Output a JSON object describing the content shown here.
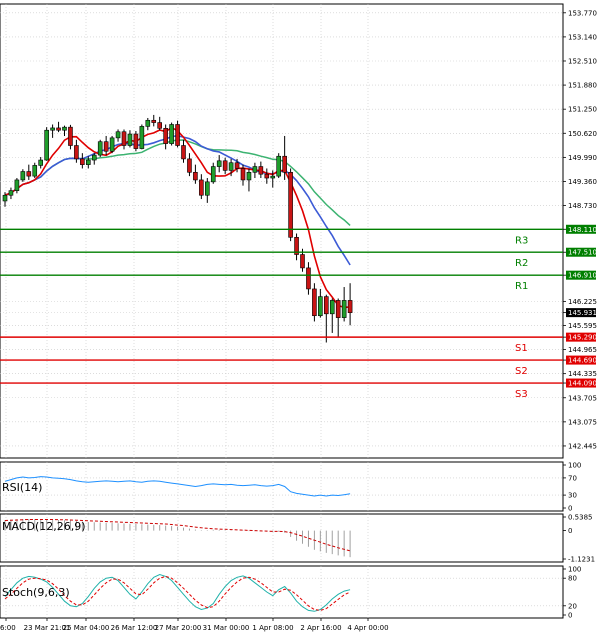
{
  "chart_data": {
    "type": "candlestick",
    "symbol_timeframe": "USDJPY H4",
    "price_axis": {
      "range": [
        142.13,
        154.0
      ],
      "ticks": [
        "153.770",
        "153.140",
        "152.510",
        "151.880",
        "151.250",
        "150.620",
        "149.990",
        "149.360",
        "148.730",
        "148.110",
        "147.510",
        "146.910",
        "146.225",
        "145.931",
        "145.595",
        "145.290",
        "144.965",
        "144.690",
        "144.335",
        "144.090",
        "143.705",
        "143.075",
        "142.445"
      ]
    },
    "time_axis": {
      "labels": [
        "6:00",
        "23 Mar 21:01",
        "25 Mar 04:00",
        "26 Mar 12:00",
        "27 Mar 20:00",
        "31 Mar 00:00",
        "1 Apr 08:00",
        "2 Apr 16:00",
        "4 Apr 00:00"
      ]
    },
    "current_price": "145.931",
    "levels": [
      {
        "name": "R3",
        "value": 148.11,
        "label": "148.110",
        "color": "#007f00"
      },
      {
        "name": "R2",
        "value": 147.51,
        "label": "147.510",
        "color": "#007f00"
      },
      {
        "name": "R1",
        "value": 146.91,
        "label": "146.910",
        "color": "#007f00"
      },
      {
        "name": "S1",
        "value": 145.29,
        "label": "145.290",
        "color": "#e00000"
      },
      {
        "name": "S2",
        "value": 144.69,
        "label": "144.690",
        "color": "#e00000"
      },
      {
        "name": "S3",
        "value": 144.09,
        "label": "144.090",
        "color": "#e00000"
      }
    ],
    "candles": [
      [
        148.85,
        149.08,
        148.7,
        149.0
      ],
      [
        149.0,
        149.2,
        148.9,
        149.12
      ],
      [
        149.12,
        149.45,
        149.05,
        149.4
      ],
      [
        149.4,
        149.68,
        149.35,
        149.62
      ],
      [
        149.62,
        149.8,
        149.4,
        149.5
      ],
      [
        149.5,
        149.85,
        149.45,
        149.78
      ],
      [
        149.78,
        150.0,
        149.7,
        149.92
      ],
      [
        149.92,
        150.78,
        149.9,
        150.7
      ],
      [
        150.7,
        150.85,
        150.5,
        150.76
      ],
      [
        150.76,
        150.92,
        150.65,
        150.7
      ],
      [
        150.7,
        150.82,
        150.55,
        150.78
      ],
      [
        150.78,
        150.84,
        150.2,
        150.3
      ],
      [
        150.3,
        150.45,
        149.85,
        149.95
      ],
      [
        149.95,
        150.1,
        149.7,
        149.8
      ],
      [
        149.8,
        150.02,
        149.7,
        149.92
      ],
      [
        149.92,
        150.1,
        149.8,
        150.05
      ],
      [
        150.05,
        150.45,
        150.0,
        150.4
      ],
      [
        150.4,
        150.55,
        150.05,
        150.15
      ],
      [
        150.15,
        150.55,
        150.1,
        150.5
      ],
      [
        150.5,
        150.72,
        150.4,
        150.66
      ],
      [
        150.66,
        150.72,
        150.2,
        150.3
      ],
      [
        150.3,
        150.7,
        150.25,
        150.6
      ],
      [
        150.6,
        150.68,
        150.15,
        150.22
      ],
      [
        150.22,
        150.85,
        150.2,
        150.8
      ],
      [
        150.8,
        151.02,
        150.7,
        150.96
      ],
      [
        150.96,
        151.1,
        150.8,
        150.9
      ],
      [
        150.9,
        151.05,
        150.7,
        150.75
      ],
      [
        150.75,
        150.85,
        150.2,
        150.35
      ],
      [
        150.35,
        150.9,
        150.3,
        150.85
      ],
      [
        150.85,
        150.95,
        150.25,
        150.3
      ],
      [
        150.3,
        150.45,
        149.85,
        149.95
      ],
      [
        149.95,
        150.1,
        149.5,
        149.6
      ],
      [
        149.6,
        149.8,
        149.3,
        149.4
      ],
      [
        149.4,
        149.55,
        148.9,
        149.0
      ],
      [
        149.0,
        149.45,
        148.8,
        149.35
      ],
      [
        149.35,
        149.85,
        149.3,
        149.75
      ],
      [
        149.75,
        150.05,
        149.6,
        149.9
      ],
      [
        149.9,
        149.98,
        149.55,
        149.65
      ],
      [
        149.65,
        149.95,
        149.5,
        149.85
      ],
      [
        149.85,
        149.95,
        149.6,
        149.7
      ],
      [
        149.7,
        149.8,
        149.25,
        149.4
      ],
      [
        149.4,
        149.7,
        149.1,
        149.6
      ],
      [
        149.6,
        149.85,
        149.45,
        149.75
      ],
      [
        149.75,
        149.88,
        149.45,
        149.55
      ],
      [
        149.55,
        149.7,
        149.3,
        149.45
      ],
      [
        149.45,
        149.65,
        149.2,
        149.5
      ],
      [
        149.5,
        150.1,
        149.45,
        150.02
      ],
      [
        150.02,
        150.55,
        149.4,
        149.6
      ],
      [
        149.6,
        149.7,
        147.8,
        147.9
      ],
      [
        147.9,
        148.0,
        147.3,
        147.45
      ],
      [
        147.45,
        147.6,
        147.0,
        147.1
      ],
      [
        147.1,
        147.25,
        146.4,
        146.55
      ],
      [
        146.55,
        146.7,
        145.7,
        145.85
      ],
      [
        145.85,
        146.55,
        145.8,
        146.35
      ],
      [
        146.35,
        146.4,
        145.15,
        145.9
      ],
      [
        145.9,
        146.3,
        145.4,
        146.25
      ],
      [
        146.25,
        146.3,
        145.3,
        145.8
      ],
      [
        145.8,
        146.6,
        145.7,
        146.25
      ],
      [
        146.25,
        146.7,
        145.6,
        145.93
      ]
    ],
    "indicators": [
      {
        "name": "RSI(14)",
        "ticks": [
          "100",
          "70",
          "30",
          "0"
        ],
        "range": [
          0,
          100
        ],
        "color": "#1e90ff",
        "values": [
          62,
          66,
          70,
          72,
          70,
          71,
          73,
          72,
          70,
          69,
          68,
          66,
          63,
          61,
          60,
          61,
          62,
          63,
          62,
          61,
          62,
          63,
          61,
          60,
          62,
          63,
          62,
          60,
          58,
          56,
          54,
          52,
          50,
          52,
          55,
          56,
          55,
          54,
          55,
          53,
          52,
          53,
          54,
          52,
          51,
          52,
          55,
          50,
          38,
          34,
          32,
          30,
          28,
          30,
          28,
          30,
          29,
          31,
          33
        ]
      },
      {
        "name": "MACD(12,26,9)",
        "ticks": [
          "0.5385",
          "0",
          "-1.1231"
        ],
        "range": [
          -1.1231,
          0.5385
        ],
        "color": "#cc0000",
        "hist": [
          0.42,
          0.44,
          0.45,
          0.46,
          0.46,
          0.45,
          0.44,
          0.44,
          0.43,
          0.42,
          0.41,
          0.4,
          0.38,
          0.36,
          0.34,
          0.33,
          0.32,
          0.31,
          0.3,
          0.29,
          0.28,
          0.27,
          0.26,
          0.25,
          0.24,
          0.23,
          0.22,
          0.2,
          0.18,
          0.15,
          0.12,
          0.08,
          0.04,
          0.02,
          0.02,
          0.03,
          0.03,
          0.02,
          0.01,
          0.0,
          -0.01,
          -0.02,
          -0.02,
          -0.03,
          -0.04,
          -0.05,
          -0.04,
          -0.08,
          -0.25,
          -0.4,
          -0.52,
          -0.64,
          -0.76,
          -0.82,
          -0.88,
          -0.93,
          -0.98,
          -1.02,
          -1.05
        ],
        "signal": [
          0.4,
          0.41,
          0.42,
          0.43,
          0.44,
          0.44,
          0.44,
          0.44,
          0.44,
          0.43,
          0.43,
          0.42,
          0.41,
          0.4,
          0.39,
          0.38,
          0.37,
          0.36,
          0.35,
          0.34,
          0.33,
          0.32,
          0.31,
          0.3,
          0.29,
          0.28,
          0.27,
          0.26,
          0.24,
          0.22,
          0.2,
          0.17,
          0.14,
          0.11,
          0.09,
          0.07,
          0.06,
          0.05,
          0.04,
          0.03,
          0.02,
          0.01,
          0.0,
          -0.01,
          -0.02,
          -0.03,
          -0.03,
          -0.04,
          -0.08,
          -0.15,
          -0.22,
          -0.3,
          -0.38,
          -0.46,
          -0.54,
          -0.61,
          -0.68,
          -0.74,
          -0.8
        ]
      },
      {
        "name": "Stoch(9,6,3)",
        "ticks": [
          "100",
          "80",
          "20",
          "0"
        ],
        "range": [
          0,
          100
        ],
        "main_color": "#20b2aa",
        "signal_color": "#e00000",
        "main": [
          40,
          55,
          70,
          80,
          84,
          82,
          78,
          72,
          60,
          45,
          30,
          20,
          18,
          25,
          40,
          58,
          72,
          80,
          82,
          75,
          60,
          45,
          35,
          50,
          68,
          82,
          88,
          84,
          75,
          60,
          45,
          30,
          18,
          12,
          15,
          25,
          45,
          62,
          75,
          82,
          85,
          80,
          70,
          60,
          50,
          42,
          55,
          62,
          48,
          30,
          18,
          10,
          8,
          12,
          22,
          35,
          45,
          52,
          55
        ],
        "signal": [
          35,
          45,
          58,
          70,
          78,
          80,
          79,
          76,
          68,
          56,
          42,
          30,
          22,
          22,
          30,
          44,
          58,
          70,
          78,
          78,
          70,
          58,
          46,
          44,
          56,
          70,
          80,
          84,
          80,
          70,
          58,
          45,
          32,
          22,
          16,
          18,
          30,
          46,
          60,
          72,
          80,
          82,
          78,
          70,
          60,
          50,
          50,
          56,
          54,
          44,
          32,
          20,
          12,
          10,
          14,
          24,
          34,
          44,
          50
        ]
      }
    ]
  }
}
